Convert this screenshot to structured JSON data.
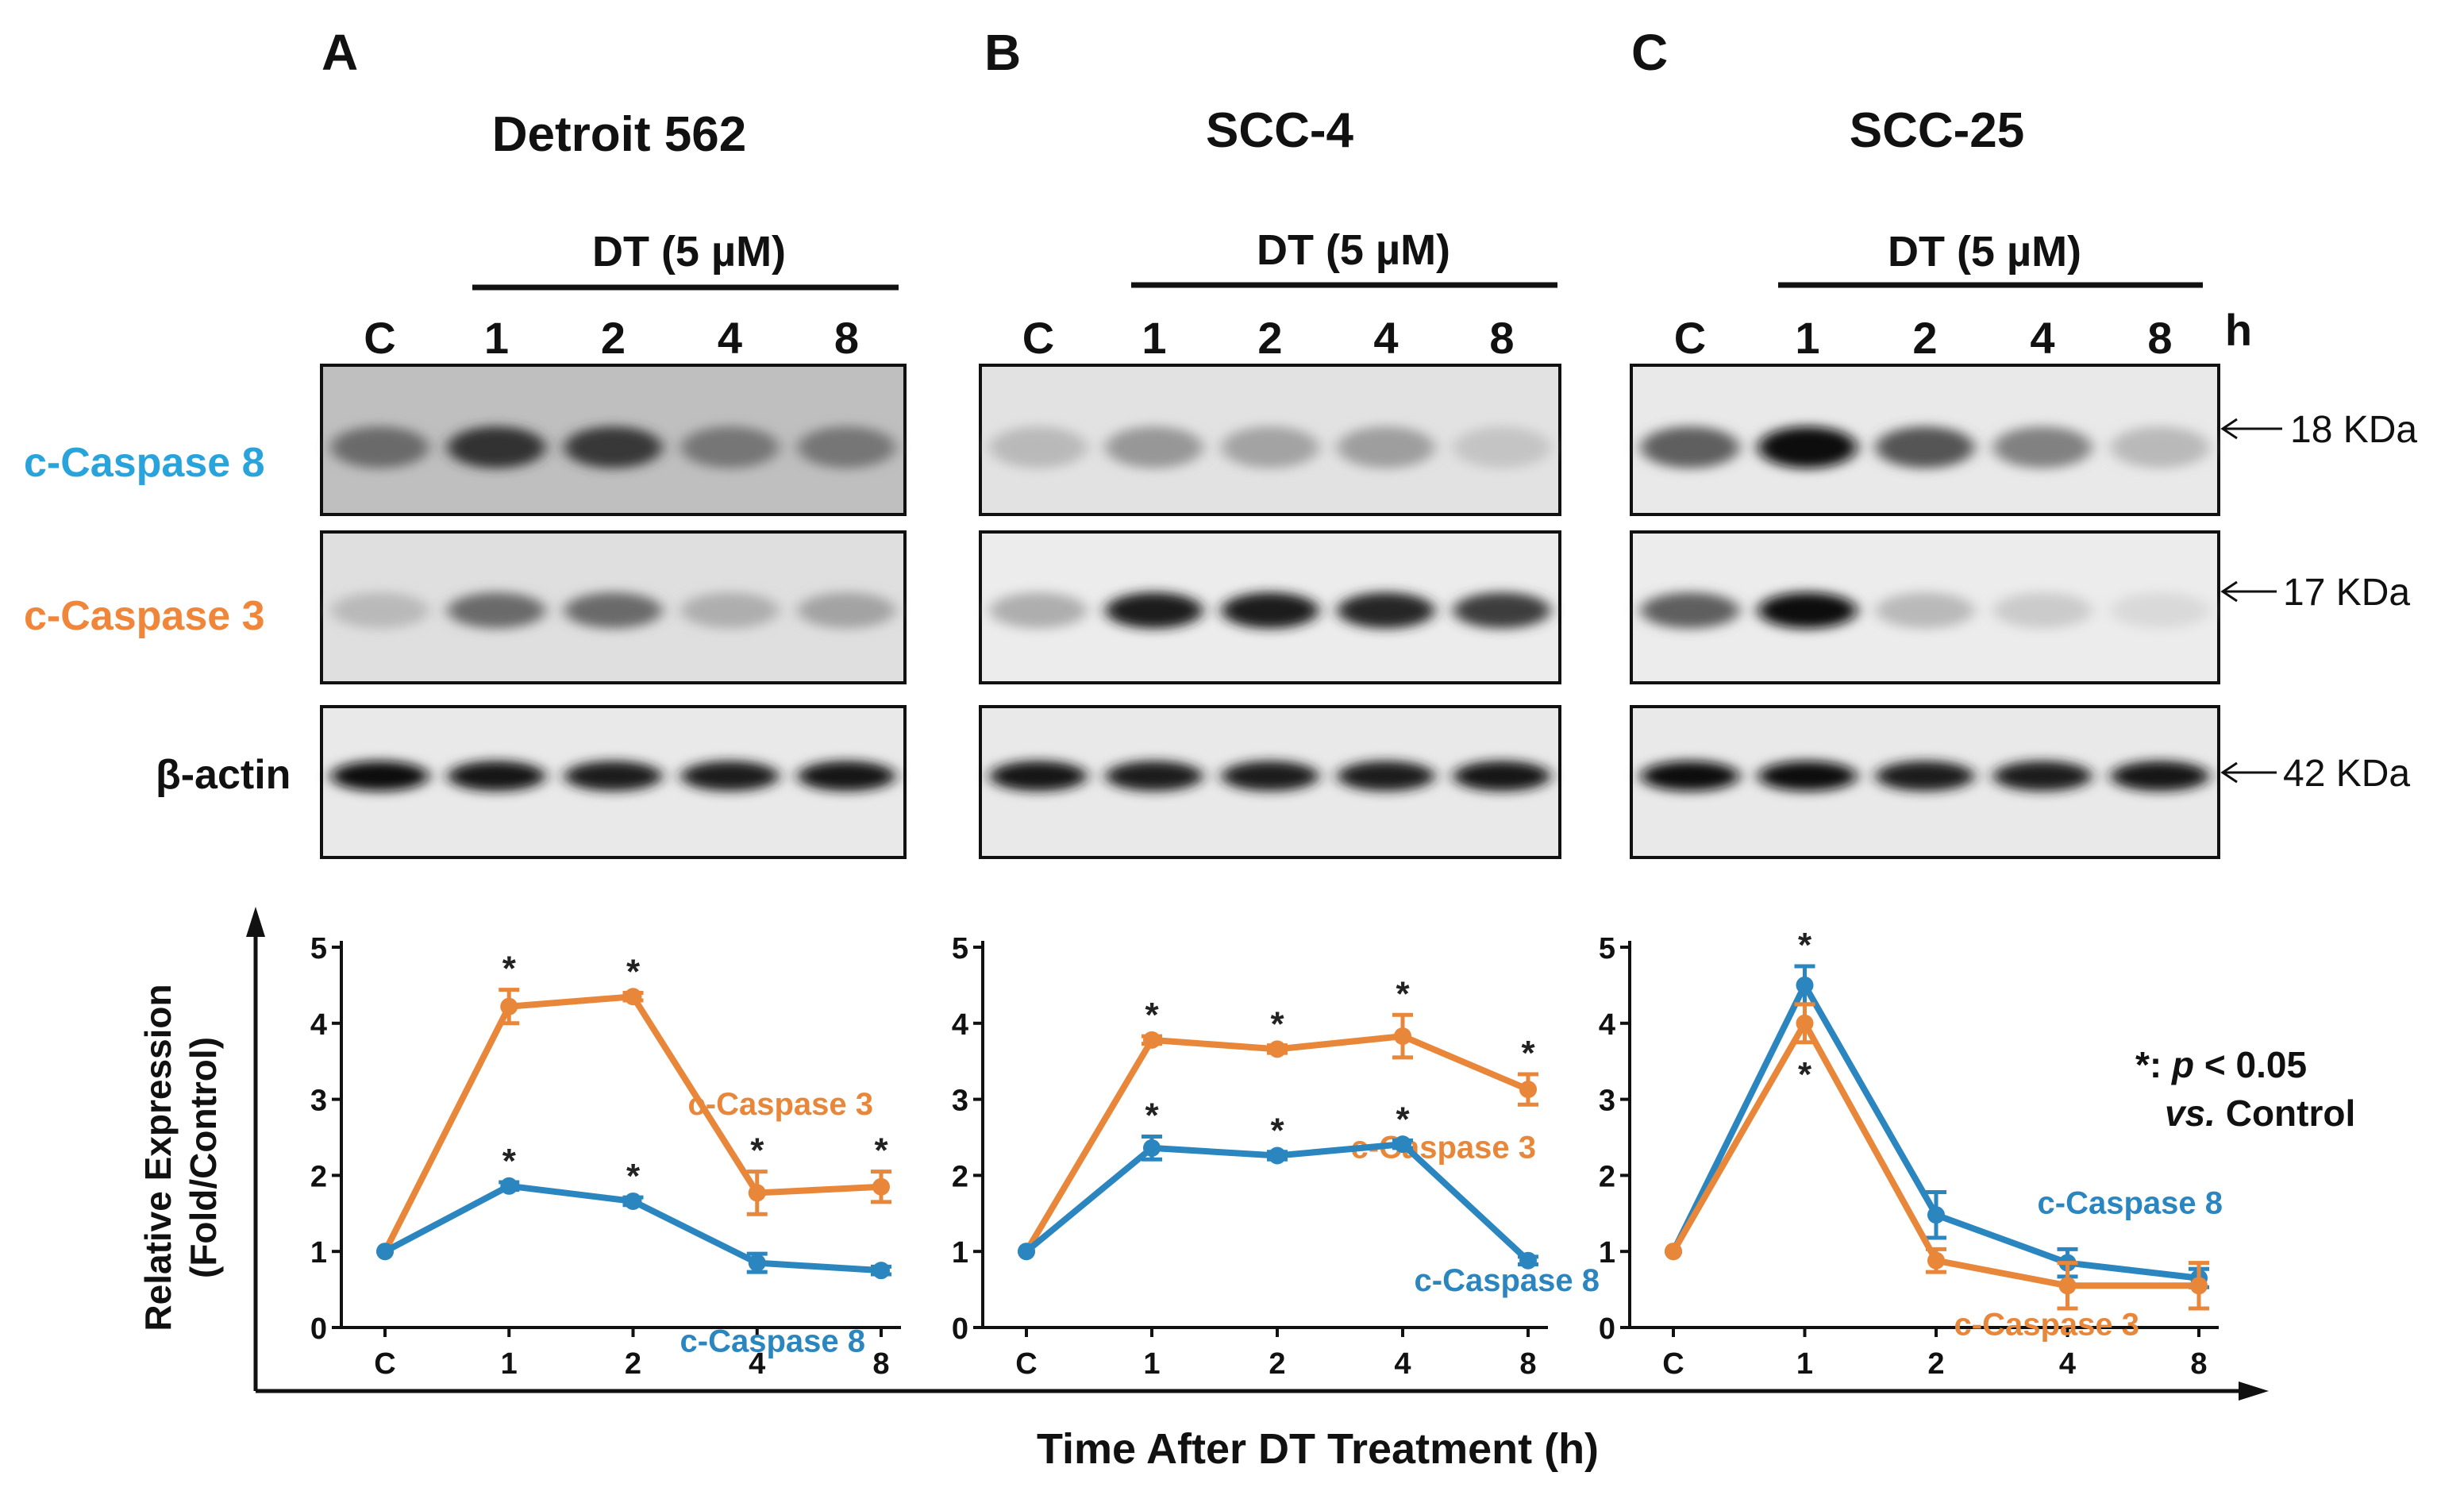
{
  "panels": [
    {
      "letter": "A",
      "title": "Detroit 562",
      "treatment": "DT (5 µM)",
      "lanes": [
        "C",
        "1",
        "2",
        "4",
        "8"
      ],
      "blots": [
        {
          "protein": "c-Caspase 8",
          "intensity": [
            0.55,
            0.8,
            0.78,
            0.5,
            0.5
          ],
          "background": 0.35
        },
        {
          "protein": "c-Caspase 3",
          "intensity": [
            0.2,
            0.55,
            0.55,
            0.25,
            0.3
          ],
          "background": 0.12
        },
        {
          "protein": "β-actin",
          "intensity": [
            0.95,
            0.93,
            0.9,
            0.9,
            0.92
          ],
          "background": 0.05
        }
      ]
    },
    {
      "letter": "B",
      "title": "SCC-4",
      "treatment": "DT (5 µM)",
      "lanes": [
        "C",
        "1",
        "2",
        "4",
        "8"
      ],
      "blots": [
        {
          "protein": "c-Caspase 8",
          "intensity": [
            0.2,
            0.35,
            0.3,
            0.32,
            0.15
          ],
          "background": 0.1
        },
        {
          "protein": "c-Caspase 3",
          "intensity": [
            0.25,
            0.9,
            0.9,
            0.85,
            0.75
          ],
          "background": 0.03
        },
        {
          "protein": "β-actin",
          "intensity": [
            0.92,
            0.9,
            0.9,
            0.9,
            0.93
          ],
          "background": 0.05
        }
      ]
    },
    {
      "letter": "C",
      "title": "SCC-25",
      "treatment": "DT (5 µM)",
      "lanes": [
        "C",
        "1",
        "2",
        "4",
        "8"
      ],
      "blots": [
        {
          "protein": "c-Caspase 8",
          "intensity": [
            0.6,
            0.95,
            0.65,
            0.45,
            0.2
          ],
          "background": 0.05
        },
        {
          "protein": "c-Caspase 3",
          "intensity": [
            0.6,
            0.98,
            0.2,
            0.12,
            0.06
          ],
          "background": 0.03
        },
        {
          "protein": "β-actin",
          "intensity": [
            0.95,
            0.97,
            0.9,
            0.9,
            0.93
          ],
          "background": 0.05
        }
      ]
    }
  ],
  "time_unit": "h",
  "sizes": [
    "18 KDa",
    "17 KDa",
    "42 KDa"
  ],
  "row_labels": [
    {
      "text": "c-Caspase 8",
      "color": "#29a3dc"
    },
    {
      "text": "c-Caspase 3",
      "color": "#f0863a"
    },
    {
      "text": "β-actin",
      "color": "#111111"
    }
  ],
  "colors": {
    "caspase3": "#e8863a",
    "caspase8": "#2b86c0"
  },
  "axis": {
    "ylabel_line1": "Relative Expression",
    "ylabel_line2": "(Fold/Control)",
    "xlabel": "Time After DT Treatment (h)"
  },
  "significance_note": {
    "line1_prefix": "*: ",
    "line1_p": "p",
    "line1_rest": " < 0.05",
    "line2_vs": "vs.",
    "line2_rest": " Control"
  },
  "chart_data": [
    {
      "type": "line",
      "panel": "A",
      "categories": [
        "C",
        "1",
        "2",
        "4",
        "8"
      ],
      "ylim": [
        0,
        5
      ],
      "yticks": [
        0,
        1,
        2,
        3,
        4,
        5
      ],
      "series": [
        {
          "name": "c-Caspase 3",
          "values": [
            1.0,
            4.22,
            4.35,
            1.77,
            1.85
          ],
          "errors": [
            0,
            0.22,
            0.05,
            0.28,
            0.2
          ],
          "significant": [
            false,
            true,
            true,
            true,
            true
          ]
        },
        {
          "name": "c-Caspase 8",
          "values": [
            1.0,
            1.86,
            1.66,
            0.85,
            0.75
          ],
          "errors": [
            0,
            0.05,
            0.05,
            0.12,
            0.05
          ],
          "significant": [
            false,
            true,
            true,
            false,
            false
          ]
        }
      ]
    },
    {
      "type": "line",
      "panel": "B",
      "categories": [
        "C",
        "1",
        "2",
        "4",
        "8"
      ],
      "ylim": [
        0,
        5
      ],
      "yticks": [
        0,
        1,
        2,
        3,
        4,
        5
      ],
      "series": [
        {
          "name": "c-Caspase 3",
          "values": [
            1.0,
            3.78,
            3.66,
            3.83,
            3.13
          ],
          "errors": [
            0,
            0.05,
            0.05,
            0.28,
            0.2
          ],
          "significant": [
            false,
            true,
            true,
            true,
            true
          ]
        },
        {
          "name": "c-Caspase 8",
          "values": [
            1.0,
            2.36,
            2.26,
            2.41,
            0.88
          ],
          "errors": [
            0,
            0.15,
            0.05,
            0.05,
            0.05
          ],
          "significant": [
            false,
            true,
            true,
            true,
            false
          ]
        }
      ]
    },
    {
      "type": "line",
      "panel": "C",
      "categories": [
        "C",
        "1",
        "2",
        "4",
        "8"
      ],
      "ylim": [
        0,
        5
      ],
      "yticks": [
        0,
        1,
        2,
        3,
        4,
        5
      ],
      "series": [
        {
          "name": "c-Caspase 8",
          "values": [
            1.0,
            4.5,
            1.48,
            0.85,
            0.65
          ],
          "errors": [
            0,
            0.25,
            0.3,
            0.18,
            0.12
          ],
          "significant": [
            false,
            true,
            false,
            false,
            false
          ]
        },
        {
          "name": "c-Caspase 3",
          "values": [
            1.0,
            4.0,
            0.88,
            0.55,
            0.55
          ],
          "errors": [
            0,
            0.25,
            0.15,
            0.3,
            0.3
          ],
          "significant": [
            false,
            true,
            false,
            false,
            false
          ]
        }
      ]
    }
  ]
}
